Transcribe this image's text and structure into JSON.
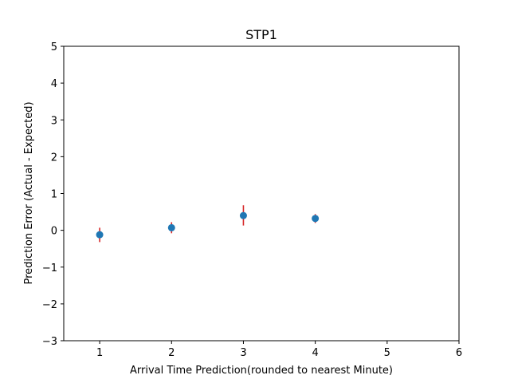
{
  "chart_data": {
    "type": "scatter",
    "title": "STP1",
    "xlabel": "Arrival Time Prediction(rounded to nearest Minute)",
    "ylabel": "Prediction Error (Actual - Expected)",
    "xlim": [
      0.5,
      6
    ],
    "ylim": [
      -3,
      5
    ],
    "xticks": [
      1,
      2,
      3,
      4,
      5,
      6
    ],
    "yticks": [
      -3,
      -2,
      -1,
      0,
      1,
      2,
      3,
      4,
      5
    ],
    "yticklabels": [
      "−3",
      "−2",
      "−1",
      "0",
      "1",
      "2",
      "3",
      "4",
      "5"
    ],
    "grid": false,
    "points": [
      {
        "x": 1,
        "y": -0.12,
        "err_low": -0.32,
        "err_high": 0.07
      },
      {
        "x": 2,
        "y": 0.07,
        "err_low": -0.08,
        "err_high": 0.22
      },
      {
        "x": 3,
        "y": 0.4,
        "err_low": 0.13,
        "err_high": 0.68
      },
      {
        "x": 4,
        "y": 0.32,
        "err_low": 0.2,
        "err_high": 0.44
      }
    ],
    "marker_color": "#1f77b4",
    "errorbar_color": "#d62728"
  }
}
